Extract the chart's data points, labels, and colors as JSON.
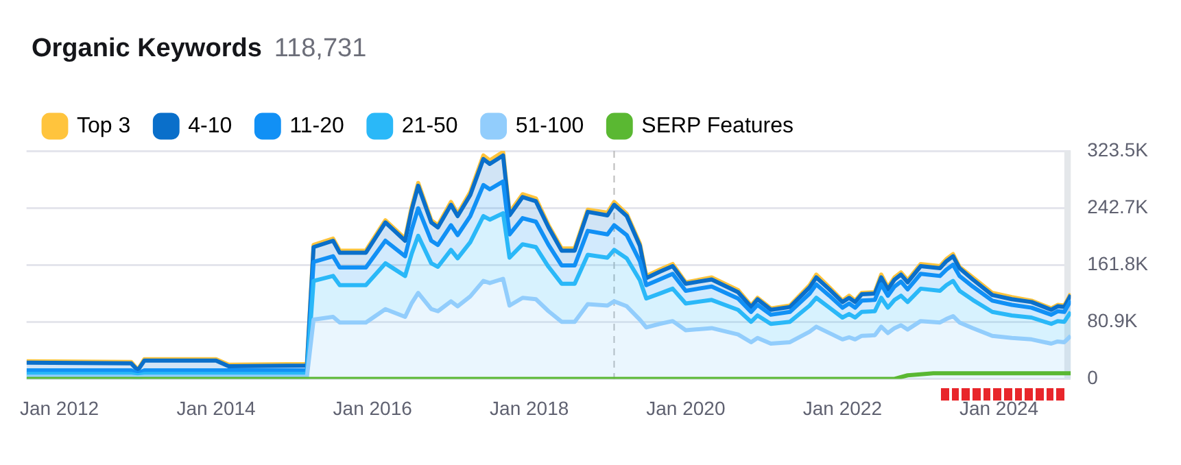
{
  "chart_data": {
    "type": "area",
    "title": "Organic Keywords",
    "subtitle": "118,731",
    "stacked": true,
    "legend": "top left",
    "grid": "y",
    "marker": "none",
    "x": [
      "2011-08",
      "2012-12",
      "2013-01",
      "2013-02",
      "2014-01",
      "2014-03",
      "2015-03",
      "2015-04",
      "2015-07",
      "2015-08",
      "2015-12",
      "2016-03",
      "2016-06",
      "2016-07",
      "2016-08",
      "2016-10",
      "2016-11",
      "2017-01",
      "2017-02",
      "2017-04",
      "2017-06",
      "2017-07",
      "2017-09",
      "2017-10",
      "2017-12",
      "2018-02",
      "2018-04",
      "2018-06",
      "2018-08",
      "2018-10",
      "2019-01",
      "2019-02",
      "2019-04",
      "2019-06",
      "2019-07",
      "2019-09",
      "2019-11",
      "2020-01",
      "2020-05",
      "2020-09",
      "2020-11",
      "2020-12",
      "2021-02",
      "2021-05",
      "2021-08",
      "2021-09",
      "2021-11",
      "2022-01",
      "2022-02",
      "2022-03",
      "2022-04",
      "2022-06",
      "2022-07",
      "2022-08",
      "2022-09",
      "2022-10",
      "2022-11",
      "2023-01",
      "2023-04",
      "2023-05",
      "2023-06",
      "2023-07",
      "2023-09",
      "2023-12",
      "2024-03",
      "2024-06",
      "2024-09",
      "2024-10",
      "2024-11",
      "2024-12"
    ],
    "series": [
      {
        "name": "51-100",
        "color": "#92cdfc",
        "values": [
          3,
          3,
          2,
          3,
          3,
          3,
          3,
          84,
          88,
          80,
          80,
          99,
          88,
          107,
          122,
          99,
          96,
          110,
          103,
          117,
          139,
          136,
          142,
          104,
          115,
          113,
          96,
          81,
          81,
          106,
          104,
          110,
          103,
          84,
          73,
          78,
          82,
          69,
          72,
          63,
          52,
          58,
          50,
          52,
          67,
          74,
          65,
          56,
          59,
          56,
          61,
          62,
          74,
          65,
          72,
          76,
          70,
          82,
          80,
          85,
          89,
          80,
          72,
          61,
          58,
          56,
          50,
          53,
          52,
          61
        ]
      },
      {
        "name": "21-50",
        "color": "#2ab8f8",
        "values": [
          4,
          4,
          3,
          4,
          4,
          4,
          4,
          55,
          58,
          53,
          53,
          65,
          58,
          70,
          81,
          65,
          63,
          73,
          68,
          77,
          92,
          90,
          93,
          68,
          76,
          74,
          63,
          54,
          54,
          70,
          68,
          73,
          68,
          56,
          41,
          43,
          46,
          38,
          40,
          35,
          29,
          32,
          28,
          29,
          37,
          41,
          36,
          31,
          33,
          31,
          34,
          34,
          41,
          36,
          40,
          42,
          39,
          46,
          45,
          48,
          50,
          45,
          40,
          34,
          32,
          31,
          28,
          29,
          29,
          34
        ]
      },
      {
        "name": "11-20",
        "color": "#1190f5",
        "values": [
          5,
          5,
          3,
          5,
          5,
          5,
          5,
          27,
          28,
          25,
          25,
          32,
          28,
          34,
          39,
          32,
          31,
          35,
          33,
          37,
          44,
          43,
          45,
          33,
          37,
          36,
          31,
          26,
          26,
          34,
          33,
          35,
          33,
          27,
          19,
          20,
          21,
          18,
          19,
          16,
          14,
          15,
          13,
          14,
          17,
          19,
          17,
          14,
          15,
          14,
          16,
          16,
          19,
          17,
          19,
          20,
          18,
          21,
          21,
          22,
          23,
          21,
          19,
          16,
          15,
          14,
          13,
          14,
          14,
          16
        ]
      },
      {
        "name": "4-10",
        "color": "#0a6fca",
        "values": [
          11,
          10,
          4,
          14,
          14,
          6,
          7,
          21,
          22,
          21,
          21,
          26,
          22,
          28,
          32,
          26,
          25,
          29,
          27,
          30,
          37,
          36,
          37,
          27,
          30,
          29,
          25,
          21,
          21,
          27,
          27,
          29,
          27,
          22,
          10,
          11,
          11,
          10,
          10,
          9,
          7,
          8,
          7,
          7,
          9,
          10,
          9,
          8,
          8,
          8,
          9,
          9,
          10,
          9,
          10,
          10,
          10,
          11,
          11,
          12,
          12,
          11,
          10,
          8,
          8,
          8,
          7,
          7,
          7,
          8
        ]
      },
      {
        "name": "Top 3",
        "color": "#ffc43d",
        "values": [
          2,
          2,
          1,
          2,
          2,
          2,
          2,
          3,
          3,
          3,
          3,
          3,
          3,
          4,
          4,
          3,
          3,
          4,
          3,
          4,
          5,
          5,
          5,
          4,
          4,
          4,
          3,
          3,
          3,
          3,
          4,
          4,
          3,
          3,
          3,
          3,
          3,
          2,
          3,
          3,
          2,
          2,
          2,
          2,
          3,
          4,
          3,
          2,
          3,
          2,
          2,
          2,
          4,
          3,
          3,
          3,
          3,
          3,
          3,
          3,
          3,
          2,
          3,
          3,
          3,
          2,
          2,
          2,
          2,
          2
        ]
      },
      {
        "name": "SERP Features",
        "type": "line",
        "color": "#5ab832",
        "x": [
          "2011-08",
          "2022-09",
          "2022-11",
          "2023-03",
          "2024-12"
        ],
        "values": [
          0,
          0,
          5,
          8,
          8
        ]
      }
    ],
    "xlim": [
      "2011-08",
      "2024-12"
    ],
    "xticks": [
      {
        "value": "2012-01",
        "label": "Jan 2012"
      },
      {
        "value": "2014-01",
        "label": "Jan 2014"
      },
      {
        "value": "2016-01",
        "label": "Jan 2016"
      },
      {
        "value": "2018-01",
        "label": "Jan 2018"
      },
      {
        "value": "2020-01",
        "label": "Jan 2020"
      },
      {
        "value": "2022-01",
        "label": "Jan 2022"
      },
      {
        "value": "2024-01",
        "label": "Jan 2024"
      }
    ],
    "ylim": [
      0,
      323.5
    ],
    "yticks": [
      0,
      {
        "value": 80.9,
        "label": "80.9K"
      },
      {
        "value": 161.8,
        "label": "161.8K"
      },
      {
        "value": 242.7,
        "label": "242.7K"
      },
      {
        "value": 323.5,
        "label": "323.5K"
      }
    ],
    "ref_lines": [
      {
        "axis": "x",
        "value": "2019-02",
        "color": "#bbbbbb",
        "line_style": "dashed"
      }
    ],
    "bands": [
      {
        "axis": "x",
        "from": "2024-11",
        "to": "2024-12",
        "color": "#e4e7ea"
      }
    ]
  }
}
